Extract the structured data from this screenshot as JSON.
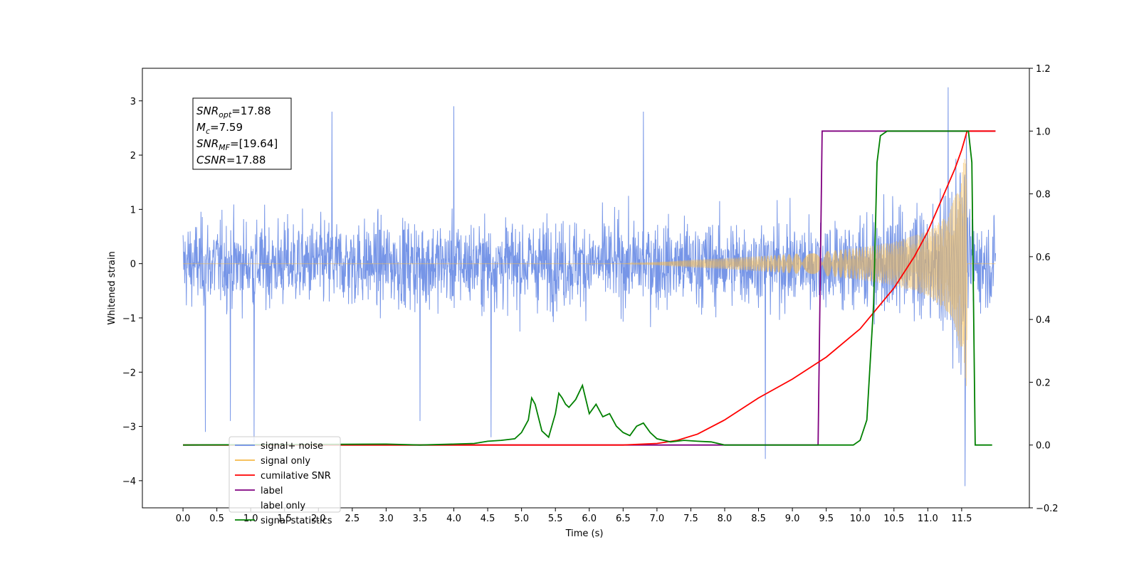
{
  "chart_data": {
    "type": "line",
    "xlabel": "Time (s)",
    "ylabel": "Whitened strain",
    "xlim": [
      -0.6,
      12.5
    ],
    "ylim": [
      -4.5,
      3.6
    ],
    "ylim_right": [
      -0.2,
      1.2
    ],
    "xticks": [
      "0.0",
      "0.5",
      "1.0",
      "1.5",
      "2.0",
      "2.5",
      "3.0",
      "3.5",
      "4.0",
      "4.5",
      "5.0",
      "5.5",
      "6.0",
      "6.5",
      "7.0",
      "7.5",
      "8.0",
      "8.5",
      "9.0",
      "9.5",
      "10.0",
      "10.5",
      "11.0",
      "11.5"
    ],
    "yticks_left": [
      "3",
      "2",
      "1",
      "0",
      "−1",
      "−2",
      "−3",
      "−4"
    ],
    "yticks_right": [
      "1.2",
      "1.0",
      "0.8",
      "0.6",
      "0.4",
      "0.2",
      "0.0",
      "−0.2"
    ],
    "grid": false,
    "legend_position": "lower-left",
    "legend": [
      {
        "name": "signal+ noise",
        "color": "#6f8fe6"
      },
      {
        "name": "signal only",
        "color": "#f5b94a"
      },
      {
        "name": "cumilative SNR",
        "color": "#ff0000"
      },
      {
        "name": "label",
        "color": "#800080"
      },
      {
        "name": "label only",
        "color": "#ffffff"
      },
      {
        "name": "signal statistics",
        "color": "#008000"
      }
    ],
    "annotation": {
      "lines": [
        {
          "main": "SNR",
          "sub": "opt",
          "rest": "=17.88"
        },
        {
          "main": "M",
          "sub": "c",
          "rest": "=7.59"
        },
        {
          "main": "SNR",
          "sub": "MF",
          "rest": "=[19.64]"
        },
        {
          "main": "CSNR",
          "sub": "",
          "rest": "=17.88"
        }
      ]
    },
    "series": [
      {
        "name": "signal+ noise",
        "axis": "left",
        "description_range": [
          0.0,
          12.0
        ],
        "noise_envelope": [
          -2.0,
          2.0
        ],
        "peaks": [
          [
            0.33,
            -3.1
          ],
          [
            0.7,
            -2.9
          ],
          [
            1.05,
            -3.3
          ],
          [
            2.2,
            2.8
          ],
          [
            3.5,
            -2.9
          ],
          [
            4.0,
            2.9
          ],
          [
            4.55,
            -3.2
          ],
          [
            6.8,
            2.8
          ],
          [
            8.6,
            -3.6
          ],
          [
            11.3,
            3.25
          ],
          [
            11.55,
            -4.1
          ]
        ]
      },
      {
        "name": "signal only",
        "axis": "left",
        "envelope_t": [
          0.0,
          6.5,
          7.0,
          7.5,
          8.0,
          8.5,
          9.0,
          9.5,
          10.0,
          10.5,
          11.0,
          11.3,
          11.5,
          11.58
        ],
        "envelope_a": [
          0.0,
          0.0,
          0.03,
          0.07,
          0.1,
          0.14,
          0.18,
          0.23,
          0.3,
          0.4,
          0.6,
          0.9,
          1.6,
          2.4
        ]
      },
      {
        "name": "cumilative SNR",
        "axis": "right",
        "x": [
          0.0,
          6.5,
          7.0,
          7.3,
          7.6,
          8.0,
          8.5,
          9.0,
          9.5,
          10.0,
          10.5,
          10.8,
          11.0,
          11.2,
          11.4,
          11.5,
          11.58,
          11.6,
          12.0
        ],
        "y": [
          0.0,
          0.0,
          0.005,
          0.015,
          0.035,
          0.08,
          0.15,
          0.21,
          0.28,
          0.37,
          0.5,
          0.6,
          0.68,
          0.78,
          0.88,
          0.94,
          1.0,
          1.0,
          1.0
        ]
      },
      {
        "name": "label",
        "axis": "right",
        "x": [
          0.0,
          9.38,
          9.44,
          11.58,
          11.62,
          12.0
        ],
        "y": [
          0.0,
          0.0,
          1.0,
          1.0,
          1.0,
          1.0
        ]
      },
      {
        "name": "signal statistics",
        "axis": "right",
        "x": [
          0.0,
          3.0,
          3.5,
          4.0,
          4.3,
          4.5,
          4.7,
          4.9,
          5.0,
          5.1,
          5.15,
          5.2,
          5.3,
          5.4,
          5.5,
          5.55,
          5.6,
          5.65,
          5.7,
          5.8,
          5.9,
          6.0,
          6.1,
          6.2,
          6.3,
          6.4,
          6.5,
          6.6,
          6.7,
          6.8,
          6.9,
          7.0,
          7.2,
          7.4,
          7.6,
          7.8,
          8.0,
          9.9,
          10.0,
          10.1,
          10.2,
          10.25,
          10.3,
          10.4,
          11.6,
          11.65,
          11.7,
          11.95
        ],
        "y": [
          0.0,
          0.003,
          0.0,
          0.003,
          0.005,
          0.012,
          0.015,
          0.02,
          0.04,
          0.08,
          0.15,
          0.13,
          0.045,
          0.025,
          0.1,
          0.165,
          0.15,
          0.13,
          0.12,
          0.145,
          0.19,
          0.1,
          0.13,
          0.09,
          0.1,
          0.06,
          0.04,
          0.03,
          0.06,
          0.07,
          0.04,
          0.02,
          0.01,
          0.015,
          0.012,
          0.01,
          0.0,
          0.0,
          0.015,
          0.08,
          0.45,
          0.9,
          0.985,
          1.0,
          1.0,
          0.9,
          0.0,
          0.0
        ]
      }
    ]
  }
}
